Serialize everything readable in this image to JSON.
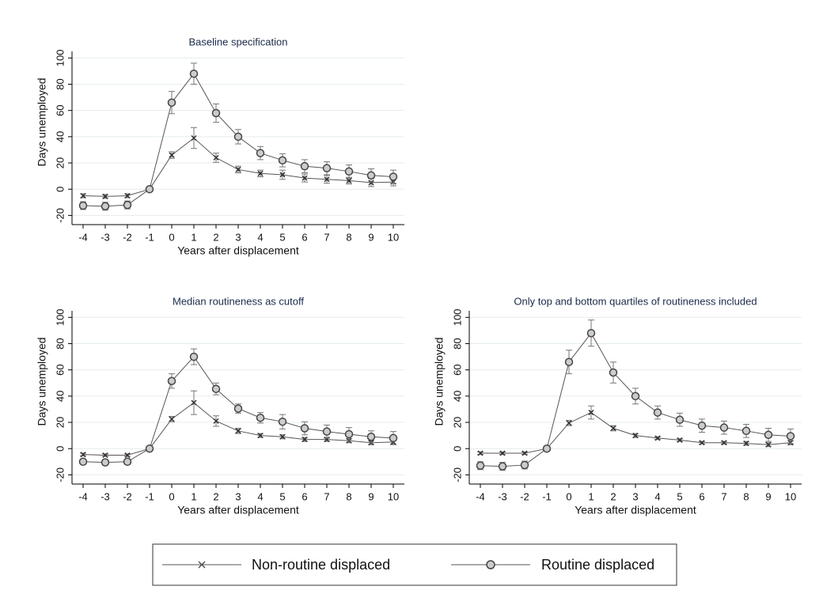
{
  "chart_data": [
    {
      "type": "line",
      "title": "Baseline specification",
      "xlabel": "Years after displacement",
      "ylabel": "Days unemployed",
      "x": [
        -4,
        -3,
        -2,
        -1,
        0,
        1,
        2,
        3,
        4,
        5,
        6,
        7,
        8,
        9,
        10
      ],
      "xlim": [
        -4.5,
        10.5
      ],
      "ylim": [
        -27,
        105
      ],
      "xticks": [
        -4,
        -3,
        -2,
        -1,
        0,
        1,
        2,
        3,
        4,
        5,
        6,
        7,
        8,
        9,
        10
      ],
      "yticks": [
        -20,
        0,
        20,
        40,
        60,
        80,
        100
      ],
      "grid": true,
      "series": [
        {
          "name": "Non-routine displaced",
          "color": "#555555",
          "marker": "x",
          "values": [
            -5,
            -5.5,
            -5,
            0,
            26,
            39,
            24,
            15,
            12,
            11,
            8.5,
            7.5,
            6.5,
            5,
            5.5
          ],
          "errors": [
            1.5,
            1.5,
            1.5,
            0,
            2.5,
            8,
            3.5,
            2.5,
            2.5,
            3.5,
            3,
            3,
            2.5,
            3,
            3
          ]
        },
        {
          "name": "Routine displaced",
          "color": "#555555",
          "marker": "circle",
          "values": [
            -12.5,
            -13,
            -12,
            0,
            66,
            88,
            58,
            40,
            27.5,
            22,
            17.5,
            16,
            13.5,
            10.5,
            9.5
          ],
          "errors": [
            3,
            3,
            3,
            0,
            8.5,
            8,
            7,
            5.5,
            5,
            5,
            5,
            5,
            5,
            5,
            5
          ]
        }
      ]
    },
    {
      "type": "line",
      "title": "Median routineness as cutoff",
      "xlabel": "Years after displacement",
      "ylabel": "Days unemployed",
      "x": [
        -4,
        -3,
        -2,
        -1,
        0,
        1,
        2,
        3,
        4,
        5,
        6,
        7,
        8,
        9,
        10
      ],
      "xlim": [
        -4.5,
        10.5
      ],
      "ylim": [
        -27,
        105
      ],
      "xticks": [
        -4,
        -3,
        -2,
        -1,
        0,
        1,
        2,
        3,
        4,
        5,
        6,
        7,
        8,
        9,
        10
      ],
      "yticks": [
        -20,
        0,
        20,
        40,
        60,
        80,
        100
      ],
      "grid": true,
      "series": [
        {
          "name": "Non-routine displaced",
          "color": "#555555",
          "marker": "x",
          "values": [
            -4.5,
            -5,
            -5,
            0,
            22.5,
            35,
            21,
            13.5,
            10,
            9,
            7,
            7,
            6,
            4.5,
            5
          ],
          "errors": [
            1,
            1,
            1,
            0,
            2,
            9,
            4,
            2,
            1.5,
            1.5,
            1.5,
            1.5,
            1.5,
            1.5,
            1.5
          ]
        },
        {
          "name": "Routine displaced",
          "color": "#555555",
          "marker": "circle",
          "values": [
            -10,
            -10.5,
            -10,
            0,
            51.5,
            70,
            45.5,
            30.5,
            23.5,
            20.5,
            15.5,
            13,
            11,
            9,
            8
          ],
          "errors": [
            2,
            2,
            2,
            0,
            5.5,
            6,
            4.5,
            3.5,
            4,
            5.5,
            5,
            5,
            5,
            4.5,
            5
          ]
        }
      ]
    },
    {
      "type": "line",
      "title": "Only top and bottom quartiles of routineness included",
      "xlabel": "Years after displacement",
      "ylabel": "Days unemployed",
      "x": [
        -4,
        -3,
        -2,
        -1,
        0,
        1,
        2,
        3,
        4,
        5,
        6,
        7,
        8,
        9,
        10
      ],
      "xlim": [
        -4.5,
        10.5
      ],
      "ylim": [
        -27,
        105
      ],
      "xticks": [
        -4,
        -3,
        -2,
        -1,
        0,
        1,
        2,
        3,
        4,
        5,
        6,
        7,
        8,
        9,
        10
      ],
      "yticks": [
        -20,
        0,
        20,
        40,
        60,
        80,
        100
      ],
      "grid": true,
      "series": [
        {
          "name": "Non-routine displaced",
          "color": "#555555",
          "marker": "x",
          "values": [
            -3.5,
            -3.5,
            -3.5,
            0,
            19.5,
            27.5,
            15.5,
            10,
            8,
            6.5,
            4.5,
            4.5,
            4,
            3,
            4.5
          ],
          "errors": [
            1,
            1,
            1,
            0,
            2,
            5,
            2,
            1.5,
            1,
            1,
            1,
            1,
            1.5,
            1.5,
            1.5
          ]
        },
        {
          "name": "Routine displaced",
          "color": "#555555",
          "marker": "circle",
          "values": [
            -13,
            -13.5,
            -12.5,
            0,
            66,
            88,
            58,
            40,
            27.5,
            22,
            17.5,
            16,
            13.5,
            10.5,
            9.5
          ],
          "errors": [
            3,
            3,
            3,
            0,
            9,
            10,
            8,
            6,
            5,
            5,
            5,
            5,
            5,
            5,
            5.5
          ]
        }
      ]
    }
  ]
}
